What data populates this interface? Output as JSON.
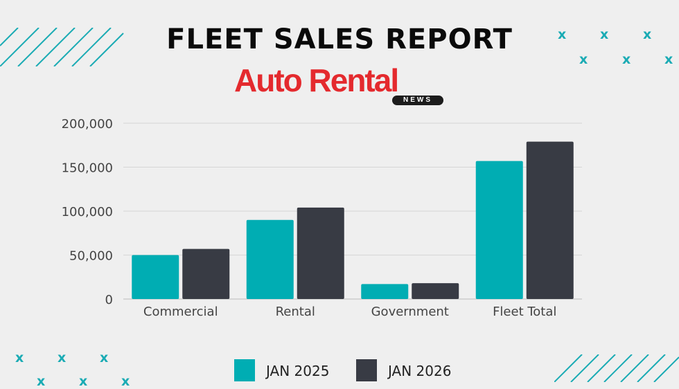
{
  "header": {
    "title": "FLEET SALES REPORT",
    "logo_text": "Auto Rental",
    "logo_subtext": "NEWS"
  },
  "colors": {
    "series_2025": "#00adb3",
    "series_2026": "#383b44",
    "logo_red": "#e42a2e",
    "accent": "#1aabb4",
    "grid": "#d6d6d6"
  },
  "decor": {
    "mark_glyph": "x"
  },
  "chart_data": {
    "type": "bar",
    "title": "",
    "xlabel": "",
    "ylabel": "",
    "categories": [
      "Commercial",
      "Rental",
      "Government",
      "Fleet Total"
    ],
    "series": [
      {
        "name": "JAN 2025",
        "values": [
          50000,
          90000,
          17000,
          157000
        ]
      },
      {
        "name": "JAN 2026",
        "values": [
          57000,
          104000,
          18000,
          179000
        ]
      }
    ],
    "ylim": [
      0,
      200000
    ],
    "yticks": [
      "0",
      "50,000",
      "100,000",
      "150,000",
      "200,000"
    ],
    "ytick_values": [
      0,
      50000,
      100000,
      150000,
      200000
    ],
    "grid": true,
    "legend_position": "bottom-center"
  }
}
